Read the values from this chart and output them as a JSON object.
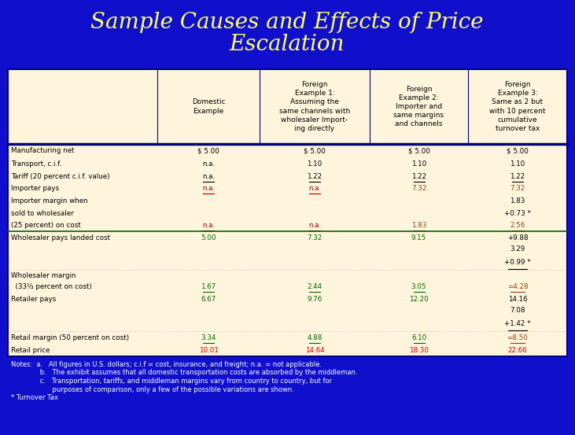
{
  "title_line1": "Sample Causes and Effects of Price",
  "title_line2": "Escalation",
  "title_color": "#FFFF66",
  "bg_color": "#1010CC",
  "table_bg": "#FFF5DC",
  "border_color": "#000080",
  "col_header_texts": [
    "",
    "Domestic\nExample",
    "Foreign\nExample 1:\nAssuming the\nsame channels with\nwholesaler Import-\ning directly",
    "Foreign\nExample 2:\nImporter and\nsame margins\nand channels",
    "Foreign\nExample 3:\nSame as 2 but\nwith 10 percent\ncumulative\nturnover tax"
  ],
  "rows": [
    {
      "label": "Manufacturing net",
      "dom": "$ 5.00",
      "fe1": "$ 5.00",
      "fe2": "$ 5.00",
      "fe3": "$ 5.00",
      "label_color": "black",
      "dom_color": "black",
      "fe1_color": "black",
      "fe2_color": "black",
      "fe3_color": "black",
      "underline": false,
      "dom_ul": false,
      "fe1_ul": false,
      "fe2_ul": false,
      "fe3_ul": false,
      "spacer": false
    },
    {
      "label": "Transport, c.i.f.",
      "dom": "n.a.",
      "fe1": "1.10",
      "fe2": "1.10",
      "fe3": "1.10",
      "label_color": "black",
      "dom_color": "black",
      "fe1_color": "black",
      "fe2_color": "black",
      "fe3_color": "black",
      "underline": false,
      "dom_ul": false,
      "fe1_ul": false,
      "fe2_ul": false,
      "fe3_ul": false,
      "spacer": false
    },
    {
      "label": "Tariff (20 percent c.i.f. value)",
      "dom": "n.a.",
      "fe1": "1.22",
      "fe2": "1.22",
      "fe3": "1.22",
      "label_color": "black",
      "dom_color": "black",
      "fe1_color": "black",
      "fe2_color": "black",
      "fe3_color": "black",
      "underline": false,
      "dom_ul": true,
      "fe1_ul": true,
      "fe2_ul": true,
      "fe3_ul": true,
      "spacer": false
    },
    {
      "label": "Importer pays",
      "dom": "n.a.",
      "fe1": "n.a.",
      "fe2": "7.32",
      "fe3": "7.32",
      "label_color": "black",
      "dom_color": "#8B0000",
      "fe1_color": "#8B0000",
      "fe2_color": "#8B4513",
      "fe3_color": "#8B4513",
      "underline": false,
      "dom_ul": true,
      "fe1_ul": true,
      "fe2_ul": false,
      "fe3_ul": false,
      "spacer": false
    },
    {
      "label": "Importer margin when",
      "dom": "",
      "fe1": "",
      "fe2": "",
      "fe3": "1.83",
      "label_color": "black",
      "dom_color": "black",
      "fe1_color": "black",
      "fe2_color": "black",
      "fe3_color": "black",
      "underline": false,
      "dom_ul": false,
      "fe1_ul": false,
      "fe2_ul": false,
      "fe3_ul": false,
      "spacer": false
    },
    {
      "label": "sold to wholesaler",
      "dom": "",
      "fe1": "",
      "fe2": "",
      "fe3": "+0.73 *",
      "label_color": "black",
      "dom_color": "black",
      "fe1_color": "black",
      "fe2_color": "black",
      "fe3_color": "black",
      "underline": false,
      "dom_ul": false,
      "fe1_ul": false,
      "fe2_ul": false,
      "fe3_ul": false,
      "spacer": false
    },
    {
      "label": "(25 percent) on cost",
      "dom": "n.a.",
      "fe1": "n.a.",
      "fe2": "1.83",
      "fe3": "2.56",
      "label_color": "black",
      "dom_color": "#8B0000",
      "fe1_color": "#8B0000",
      "fe2_color": "#8B4513",
      "fe3_color": "#8B4513",
      "underline": true,
      "dom_ul": true,
      "fe1_ul": true,
      "fe2_ul": true,
      "fe3_ul": true,
      "spacer": false
    },
    {
      "label": "Wholesaler pays landed cost",
      "dom": "5.00",
      "fe1": "7.32",
      "fe2": "9.15",
      "fe3": "+9.88",
      "label_color": "black",
      "dom_color": "#006400",
      "fe1_color": "#006400",
      "fe2_color": "#006400",
      "fe3_color": "black",
      "underline": false,
      "dom_ul": false,
      "fe1_ul": false,
      "fe2_ul": false,
      "fe3_ul": false,
      "spacer": false
    },
    {
      "label": "",
      "dom": "",
      "fe1": "",
      "fe2": "",
      "fe3": "3.29",
      "label_color": "black",
      "dom_color": "black",
      "fe1_color": "black",
      "fe2_color": "black",
      "fe3_color": "black",
      "underline": false,
      "dom_ul": false,
      "fe1_ul": false,
      "fe2_ul": false,
      "fe3_ul": false,
      "spacer": false
    },
    {
      "label": "",
      "dom": "",
      "fe1": "",
      "fe2": "",
      "fe3": "+0.99 *",
      "label_color": "black",
      "dom_color": "black",
      "fe1_color": "black",
      "fe2_color": "black",
      "fe3_color": "black",
      "underline": false,
      "dom_ul": false,
      "fe1_ul": false,
      "fe2_ul": false,
      "fe3_ul": true,
      "spacer": true
    },
    {
      "label": "Wholesaler margin",
      "dom": "",
      "fe1": "",
      "fe2": "",
      "fe3": "",
      "label_color": "black",
      "dom_color": "black",
      "fe1_color": "black",
      "fe2_color": "black",
      "fe3_color": "black",
      "underline": false,
      "dom_ul": false,
      "fe1_ul": false,
      "fe2_ul": false,
      "fe3_ul": false,
      "spacer": false
    },
    {
      "label": "  (33⅓ percent on cost)",
      "dom": "1.67",
      "fe1": "2.44",
      "fe2": "3.05",
      "fe3": "=4.28",
      "label_color": "black",
      "dom_color": "#006400",
      "fe1_color": "#006400",
      "fe2_color": "#006400",
      "fe3_color": "#8B4513",
      "underline": false,
      "dom_ul": true,
      "fe1_ul": true,
      "fe2_ul": true,
      "fe3_ul": true,
      "spacer": false
    },
    {
      "label": "Retailer pays",
      "dom": "6.67",
      "fe1": "9.76",
      "fe2": "12.20",
      "fe3": "14.16",
      "label_color": "black",
      "dom_color": "#006400",
      "fe1_color": "#006400",
      "fe2_color": "#006400",
      "fe3_color": "black",
      "underline": false,
      "dom_ul": false,
      "fe1_ul": false,
      "fe2_ul": false,
      "fe3_ul": false,
      "spacer": false
    },
    {
      "label": "",
      "dom": "",
      "fe1": "",
      "fe2": "",
      "fe3": "7.08",
      "label_color": "black",
      "dom_color": "black",
      "fe1_color": "black",
      "fe2_color": "black",
      "fe3_color": "black",
      "underline": false,
      "dom_ul": false,
      "fe1_ul": false,
      "fe2_ul": false,
      "fe3_ul": false,
      "spacer": false
    },
    {
      "label": "",
      "dom": "",
      "fe1": "",
      "fe2": "",
      "fe3": "+1.42 *",
      "label_color": "black",
      "dom_color": "black",
      "fe1_color": "black",
      "fe2_color": "black",
      "fe3_color": "black",
      "underline": false,
      "dom_ul": false,
      "fe1_ul": false,
      "fe2_ul": false,
      "fe3_ul": true,
      "spacer": true
    },
    {
      "label": "Retail margin (50 percent on cost)",
      "dom": "3.34",
      "fe1": "4.88",
      "fe2": "6.10",
      "fe3": "=8.50",
      "label_color": "black",
      "dom_color": "#006400",
      "fe1_color": "#006400",
      "fe2_color": "#006400",
      "fe3_color": "#8B4513",
      "underline": false,
      "dom_ul": true,
      "fe1_ul": true,
      "fe2_ul": true,
      "fe3_ul": true,
      "spacer": false
    },
    {
      "label": "Retail price",
      "dom": "10.01",
      "fe1": "14.64",
      "fe2": "18.30",
      "fe3": "22.66",
      "label_color": "black",
      "dom_color": "#CC0000",
      "fe1_color": "#CC0000",
      "fe2_color": "#CC0000",
      "fe3_color": "#CC0000",
      "underline": false,
      "dom_ul": false,
      "fe1_ul": false,
      "fe2_ul": false,
      "fe3_ul": false,
      "spacer": false
    }
  ],
  "notes": [
    "Notes:  a.   All figures in U.S. dollars; c.i.f = cost, insurance, and freight; n.a. = not applicable.",
    "              b.   The exhibit assumes that all domestic transportation costs are absorbed by the middleman.",
    "              c.   Transportation, tariffs, and middleman margins vary from country to country, but for",
    "                    purposes of comparison, only a few of the possible variations are shown.",
    "* Turnover Tax"
  ]
}
